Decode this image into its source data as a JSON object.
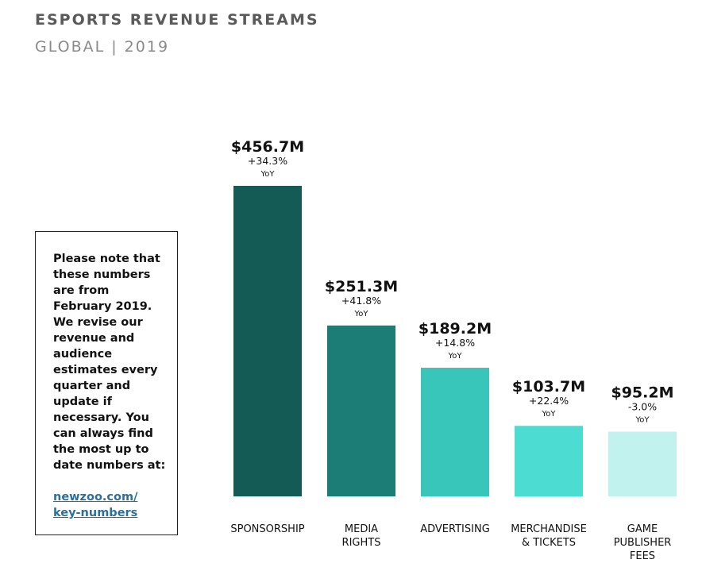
{
  "note": {
    "text": "Please note that these numbers are from February 2019. We revise our revenue and audience estimates every quarter and update if necessary. You can always find the most up to date numbers at:",
    "link": "newzoo.com/ key-numbers"
  },
  "chart_data": {
    "type": "bar",
    "title": "ESPORTS REVENUE STREAMS",
    "subtitle": "GLOBAL | 2019",
    "categories": [
      [
        "SPONSORSHIP"
      ],
      [
        "MEDIA",
        "RIGHTS"
      ],
      [
        "ADVERTISING"
      ],
      [
        "MERCHANDISE",
        "& TICKETS"
      ],
      [
        "GAME",
        "PUBLISHER",
        "FEES"
      ]
    ],
    "values": [
      456.7,
      251.3,
      189.2,
      103.7,
      95.2
    ],
    "value_labels": [
      "$456.7M",
      "$251.3M",
      "$189.2M",
      "$103.7M",
      "$95.2M"
    ],
    "yoy": [
      "+34.3%",
      "+41.8%",
      "+14.8%",
      "+22.4%",
      "-3.0%"
    ],
    "yoy_label": "YoY",
    "colors": [
      "#145a55",
      "#1c7d77",
      "#38c6bb",
      "#4ddcd2",
      "#c2f2ee"
    ],
    "unit": "$M",
    "ylim": [
      0,
      456.7
    ]
  }
}
